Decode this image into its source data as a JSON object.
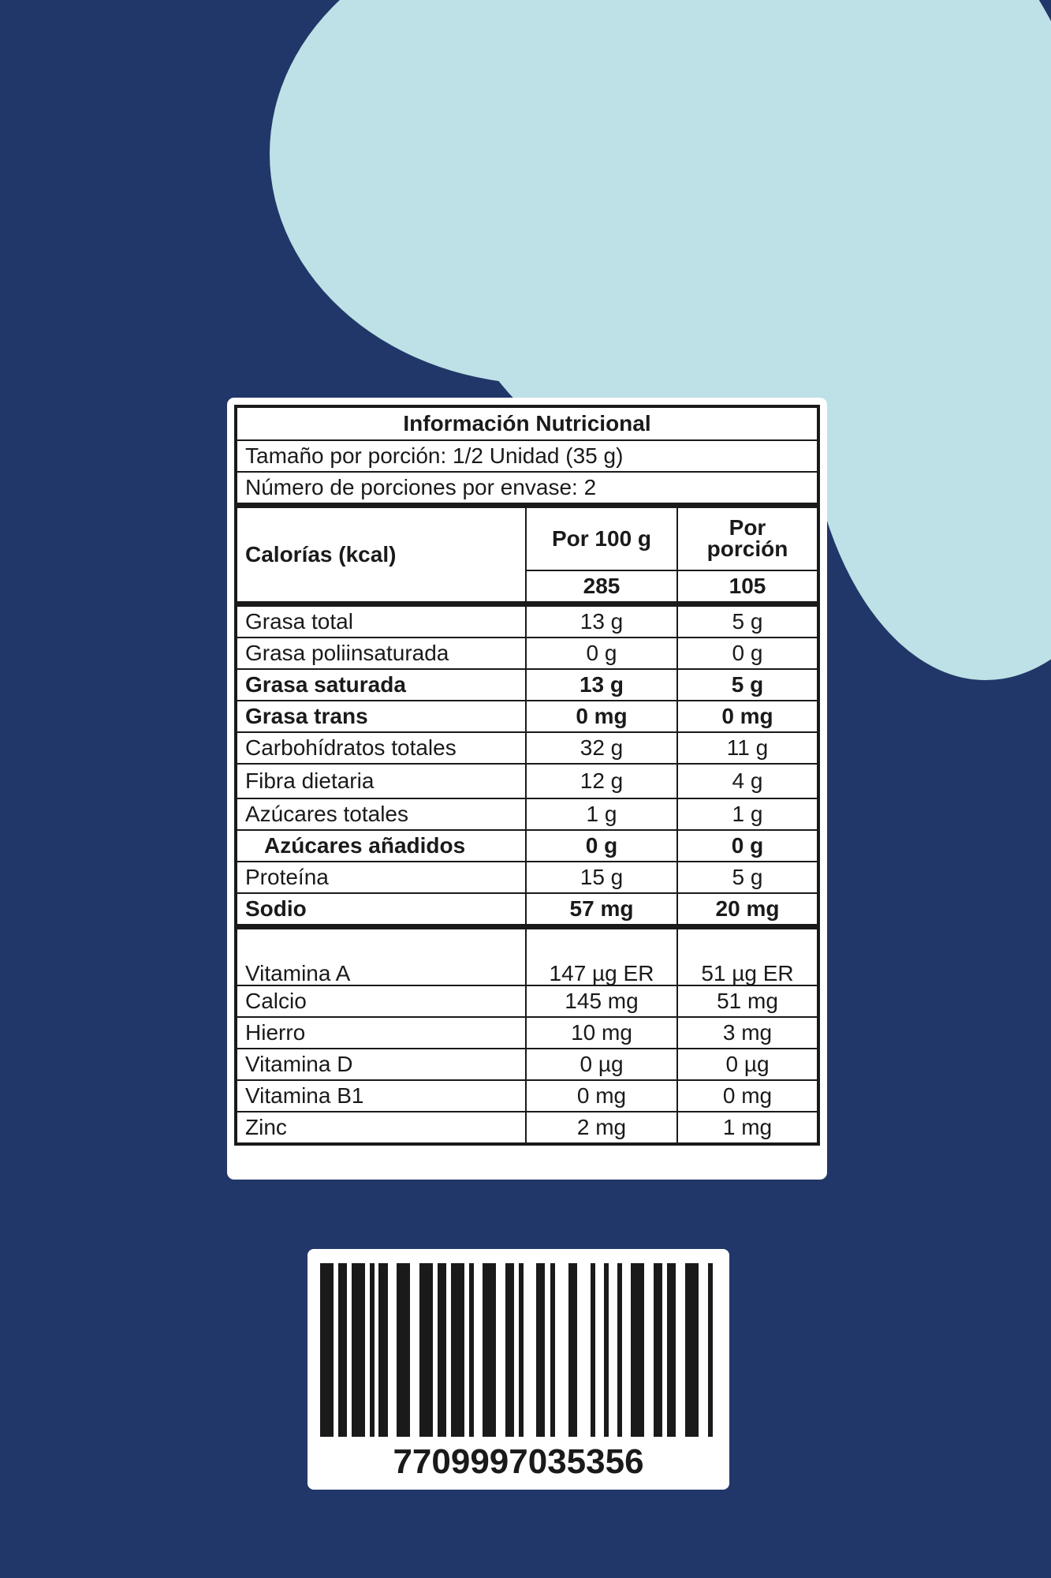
{
  "colors": {
    "background": "#213769",
    "blob": "#bde1e6",
    "text": "#1a1a1a"
  },
  "label": {
    "title": "Información Nutricional",
    "serving_size": "Tamaño por porción: 1/2 Unidad (35 g)",
    "servings_per_container": "Número de porciones por envase: 2",
    "calories_label": "Calorías (kcal)",
    "col_100g": "Por 100 g",
    "col_portion": "Por porción",
    "calories_100g": "285",
    "calories_portion": "105",
    "nutrients": [
      {
        "name": "Grasa total",
        "per100": "13 g",
        "portion": "5 g"
      },
      {
        "name": "Grasa poliinsaturada",
        "per100": "0 g",
        "portion": "0 g"
      },
      {
        "name": "Grasa saturada",
        "per100": "13 g",
        "portion": "5 g"
      },
      {
        "name": "Grasa trans",
        "per100": "0 mg",
        "portion": "0 mg"
      },
      {
        "name": "Carbohídratos totales",
        "per100": "32 g",
        "portion": "11 g"
      },
      {
        "name": "Fibra dietaria",
        "per100": "12 g",
        "portion": "4 g"
      },
      {
        "name": "Azúcares totales",
        "per100": "1 g",
        "portion": "1 g"
      },
      {
        "name": "Azúcares añadidos",
        "per100": "0 g",
        "portion": "0 g"
      },
      {
        "name": "Proteína",
        "per100": "15 g",
        "portion": "5 g"
      },
      {
        "name": "Sodio",
        "per100": "57 mg",
        "portion": "20 mg"
      }
    ],
    "micronutrients": [
      {
        "name": "Vitamina A",
        "per100": "147 µg ER",
        "portion": "51 µg ER"
      },
      {
        "name": "Calcio",
        "per100": "145 mg",
        "portion": "51 mg"
      },
      {
        "name": "Hierro",
        "per100": "10 mg",
        "portion": "3 mg"
      },
      {
        "name": "Vitamina D",
        "per100": "0 µg",
        "portion": "0 µg"
      },
      {
        "name": "Vitamina B1",
        "per100": "0 mg",
        "portion": "0 mg"
      },
      {
        "name": "Zinc",
        "per100": "2 mg",
        "portion": "1 mg"
      }
    ]
  },
  "barcode": {
    "number": "7709997035356"
  }
}
